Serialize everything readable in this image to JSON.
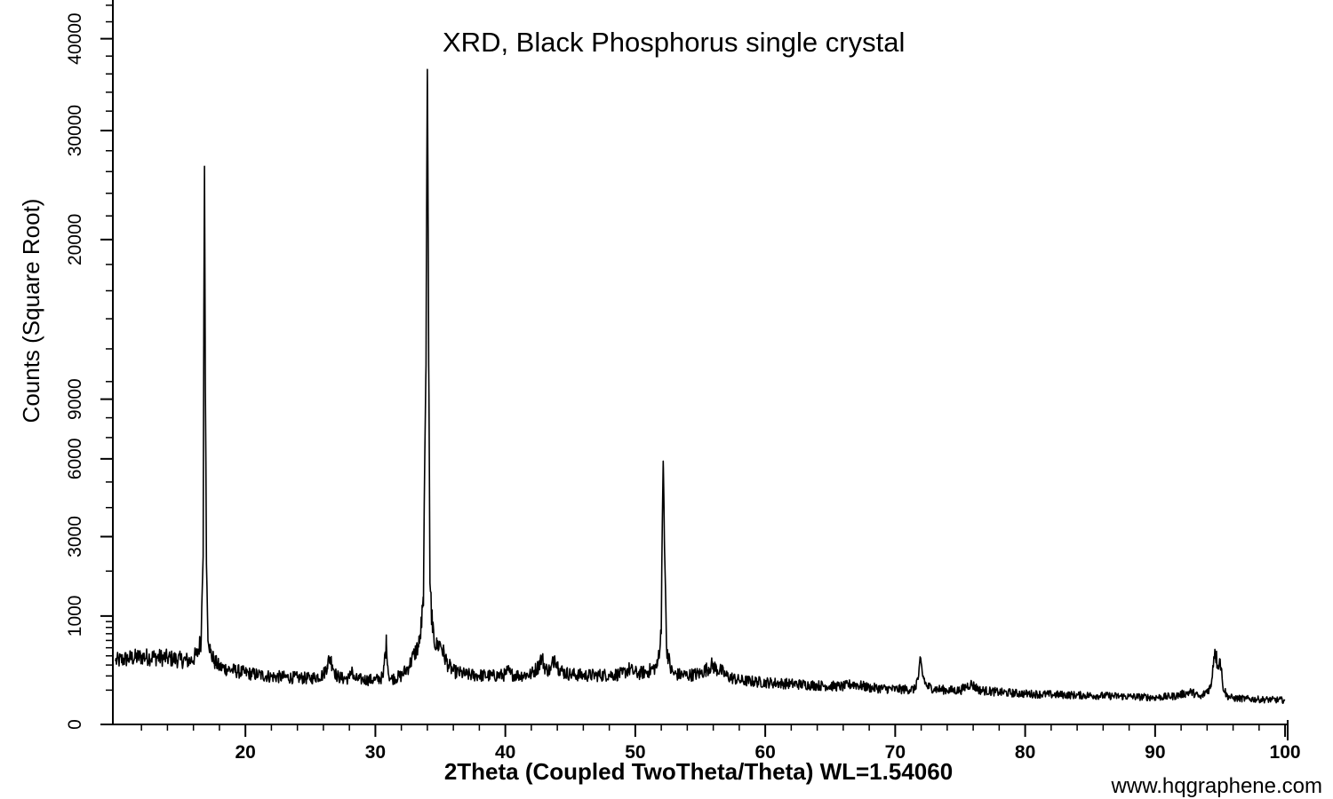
{
  "chart_data": {
    "type": "line",
    "title": "XRD, Black Phosphorus single crystal",
    "xlabel": "2Theta (Coupled TwoTheta/Theta) WL=1.54060",
    "ylabel": "Counts (Square Root)",
    "xscale": "linear",
    "yscale": "sqrt",
    "xlim": [
      9.8,
      100.2
    ],
    "ylim": [
      0,
      44100
    ],
    "xticks": [
      20,
      30,
      40,
      50,
      60,
      70,
      80,
      90,
      100
    ],
    "yticks": [
      0,
      1000,
      3000,
      6000,
      9000,
      20000,
      30000,
      40000
    ],
    "grid": false,
    "legend": "none",
    "line_color": "#000000",
    "series": [
      {
        "x": [
          10.0,
          11.0,
          12.0,
          13.0,
          14.0,
          15.0,
          15.8,
          16.3,
          16.6,
          16.75,
          16.85,
          16.92,
          17.0,
          17.1,
          17.3,
          17.6,
          18.0,
          19.0,
          20.0,
          21.0,
          22.0,
          23.0,
          24.0,
          25.0,
          26.0,
          26.3,
          26.5,
          26.7,
          27.0,
          27.5,
          28.0,
          28.2,
          28.3,
          28.4,
          29.0,
          30.0,
          30.6,
          30.85,
          31.0,
          31.2,
          32.0,
          32.6,
          33.0,
          33.4,
          33.7,
          33.9,
          34.0,
          34.1,
          34.2,
          34.4,
          34.7,
          35.0,
          35.3,
          35.6,
          36.0,
          37.0,
          38.0,
          39.0,
          40.0,
          40.2,
          40.4,
          41.0,
          42.0,
          42.5,
          42.8,
          43.1,
          43.5,
          43.8,
          44.1,
          44.5,
          45.0,
          46.0,
          47.0,
          48.0,
          49.0,
          49.5,
          49.8,
          50.2,
          51.0,
          51.7,
          52.0,
          52.15,
          52.25,
          52.4,
          52.7,
          53.0,
          54.0,
          55.0,
          55.5,
          55.9,
          56.3,
          56.6,
          57.0,
          58.0,
          60.0,
          62.0,
          64.0,
          66.0,
          66.7,
          68.0,
          70.0,
          71.5,
          71.8,
          71.95,
          72.1,
          72.4,
          73.0,
          74.0,
          75.0,
          75.8,
          76.5,
          78.0,
          80.0,
          82.0,
          84.0,
          86.0,
          88.0,
          90.0,
          91.5,
          92.8,
          93.5,
          94.3,
          94.6,
          94.8,
          95.0,
          95.2,
          95.5,
          96.0,
          97.0,
          98.0,
          99.0,
          100.0
        ],
        "y": [
          340,
          370,
          390,
          385,
          375,
          355,
          345,
          420,
          620,
          2400,
          26500,
          9500,
          2200,
          780,
          440,
          340,
          280,
          250,
          225,
          210,
          195,
          190,
          185,
          180,
          210,
          300,
          380,
          300,
          200,
          180,
          180,
          280,
          180,
          175,
          172,
          168,
          190,
          560,
          220,
          175,
          200,
          290,
          420,
          560,
          1200,
          11000,
          36500,
          11000,
          1700,
          720,
          520,
          560,
          400,
          300,
          240,
          210,
          205,
          200,
          210,
          250,
          215,
          205,
          215,
          280,
          380,
          260,
          250,
          400,
          270,
          230,
          215,
          205,
          205,
          210,
          215,
          260,
          240,
          220,
          240,
          290,
          700,
          5900,
          2600,
          520,
          260,
          215,
          205,
          220,
          260,
          300,
          255,
          245,
          200,
          165,
          150,
          140,
          130,
          122,
          140,
          115,
          105,
          105,
          200,
          330,
          210,
          125,
          108,
          100,
          98,
          140,
          100,
          88,
          80,
          76,
          73,
          70,
          66,
          62,
          68,
          90,
          60,
          120,
          480,
          300,
          360,
          130,
          70,
          58,
          56,
          53,
          52,
          50
        ]
      }
    ]
  },
  "watermark": "www.hqgraphene.com"
}
